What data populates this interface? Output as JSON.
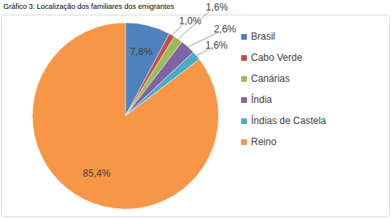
{
  "chart_data": {
    "type": "pie",
    "title": "Gráfico 3: Localização dos familiares dos emigrantes",
    "categories": [
      "Brasil",
      "Cabo Verde",
      "Canárias",
      "Índia",
      "Índias de Castela",
      "Reino"
    ],
    "values": [
      7.8,
      1.0,
      1.6,
      2.6,
      1.6,
      85.4
    ],
    "value_labels": [
      "7,8%",
      "1,0%",
      "1,6%",
      "2,6%",
      "1,6%",
      "85,4%"
    ],
    "colors": [
      "#4f81bd",
      "#c0504d",
      "#9bbb59",
      "#8064a2",
      "#4bacc6",
      "#f79646"
    ],
    "data_labels": true,
    "legend": "right"
  }
}
